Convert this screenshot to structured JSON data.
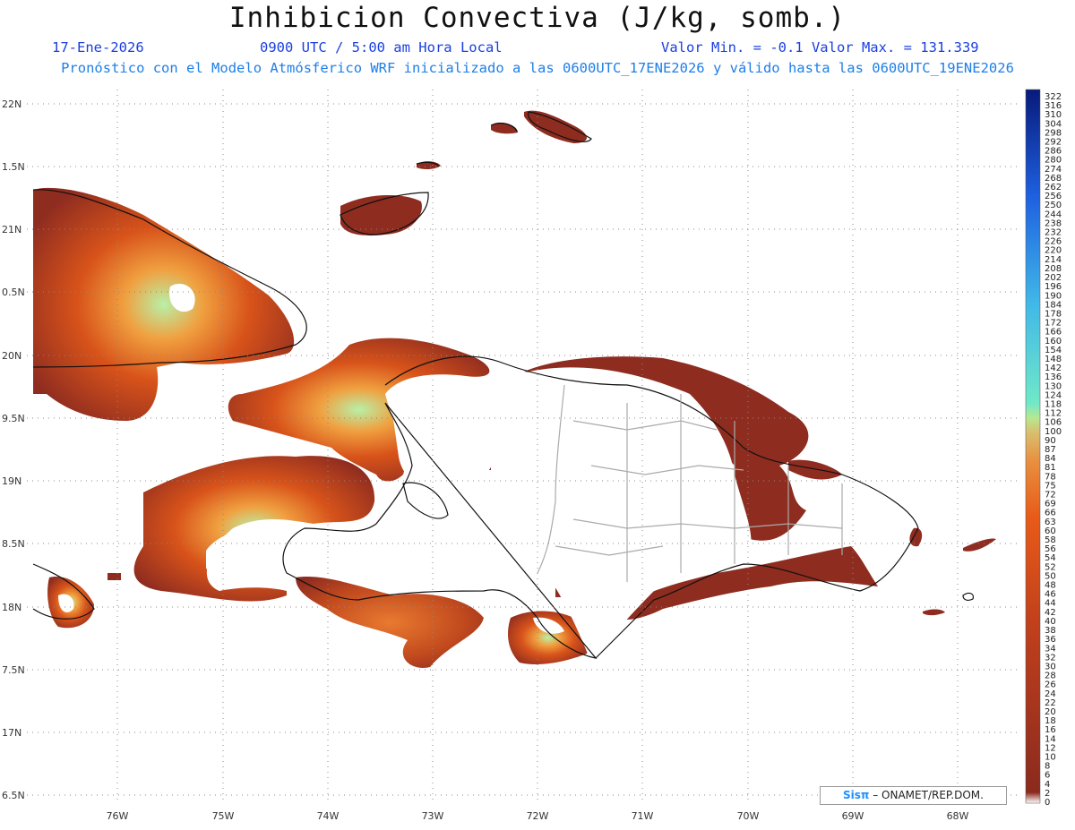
{
  "title": "Inhibicion Convectiva (J/kg, somb.)",
  "date": "17-Ene-2026",
  "time": "0900 UTC / 5:00 am Hora Local",
  "minmax": "Valor Min. = -0.1  Valor Max. = 131.339",
  "model_line": "Pronóstico con el Modelo Atmósferico WRF inicializado a las 0600UTC_17ENE2026 y válido hasta las  0600UTC_19ENE2026",
  "credit": {
    "sis": "Sisπ",
    "org": " – ONAMET/REP.DOM."
  },
  "lat_labels": [
    "22N",
    "1.5N",
    "21N",
    "0.5N",
    "20N",
    "9.5N",
    "19N",
    "8.5N",
    "18N",
    "7.5N",
    "17N",
    "6.5N"
  ],
  "lon_labels": [
    "76W",
    "75W",
    "74W",
    "73W",
    "72W",
    "71W",
    "70W",
    "69W",
    "68W"
  ],
  "legend": {
    "labels": [
      "322",
      "316",
      "310",
      "304",
      "298",
      "292",
      "286",
      "280",
      "274",
      "268",
      "262",
      "256",
      "250",
      "244",
      "238",
      "232",
      "226",
      "220",
      "214",
      "208",
      "202",
      "196",
      "190",
      "184",
      "178",
      "172",
      "166",
      "160",
      "154",
      "148",
      "142",
      "136",
      "130",
      "124",
      "118",
      "112",
      "106",
      "100",
      "90",
      "87",
      "84",
      "81",
      "78",
      "75",
      "72",
      "69",
      "66",
      "63",
      "60",
      "58",
      "56",
      "54",
      "52",
      "50",
      "48",
      "46",
      "44",
      "42",
      "40",
      "38",
      "36",
      "34",
      "32",
      "30",
      "28",
      "26",
      "24",
      "22",
      "20",
      "18",
      "16",
      "14",
      "12",
      "10",
      "8",
      "6",
      "4",
      "2",
      "0"
    ],
    "colors": {
      "low": "#8b2a1e",
      "mid": "#e0551a",
      "green": "#b8f0a8",
      "cyan": "#40c8e0",
      "blue": "#0a1e8c"
    }
  }
}
